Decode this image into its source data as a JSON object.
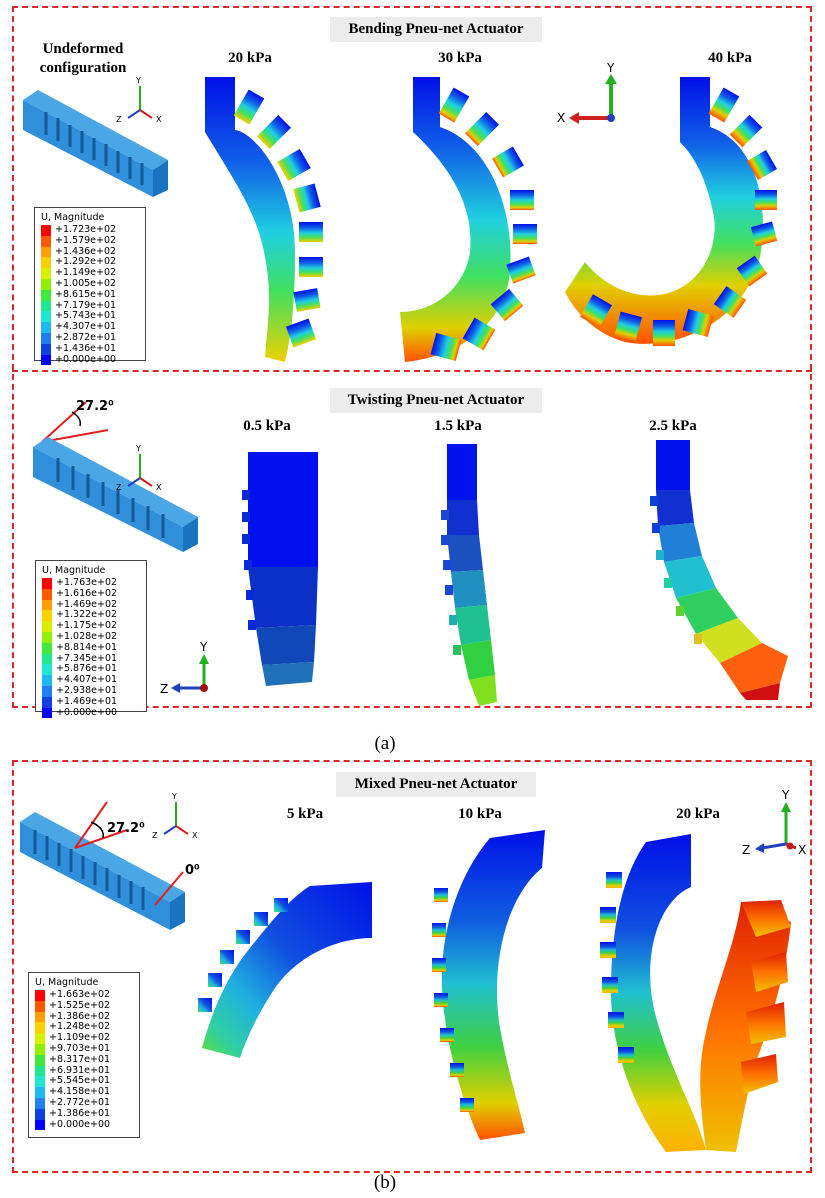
{
  "panel_a": {
    "bending": {
      "title": "Bending Pneu-net Actuator",
      "undeformed_label": "Undeformed configuration",
      "pressures": [
        "20 kPa",
        "30 kPa",
        "40 kPa"
      ],
      "legend": {
        "title": "U, Magnitude",
        "values": [
          "+1.723e+02",
          "+1.579e+02",
          "+1.436e+02",
          "+1.292e+02",
          "+1.149e+02",
          "+1.005e+02",
          "+8.615e+01",
          "+7.179e+01",
          "+5.743e+01",
          "+4.307e+01",
          "+2.872e+01",
          "+1.436e+01",
          "+0.000e+00"
        ]
      }
    },
    "twisting": {
      "title": "Twisting Pneu-net Actuator",
      "angle": "27.2⁰",
      "pressures": [
        "0.5 kPa",
        "1.5 kPa",
        "2.5 kPa"
      ],
      "legend": {
        "title": "U, Magnitude",
        "values": [
          "+1.763e+02",
          "+1.616e+02",
          "+1.469e+02",
          "+1.322e+02",
          "+1.175e+02",
          "+1.028e+02",
          "+8.814e+01",
          "+7.345e+01",
          "+5.876e+01",
          "+4.407e+01",
          "+2.938e+01",
          "+1.469e+01",
          "+0.000e+00"
        ]
      }
    },
    "caption": "(a)"
  },
  "panel_b": {
    "mixed": {
      "title": "Mixed Pneu-net Actuator",
      "angle_a": "27.2⁰",
      "angle_b": "0⁰",
      "pressures": [
        "5 kPa",
        "10 kPa",
        "20 kPa"
      ],
      "legend": {
        "title": "U, Magnitude",
        "values": [
          "+1.663e+02",
          "+1.525e+02",
          "+1.386e+02",
          "+1.248e+02",
          "+1.109e+02",
          "+9.703e+01",
          "+8.317e+01",
          "+6.931e+01",
          "+5.545e+01",
          "+4.158e+01",
          "+2.772e+01",
          "+1.386e+01",
          "+0.000e+00"
        ]
      }
    },
    "caption": "(b)"
  },
  "axes": {
    "x": "X",
    "y": "Y",
    "z": "Z"
  },
  "colors": {
    "frame": "#d82828",
    "contour": [
      "#ff0000",
      "#ff5a00",
      "#ffa000",
      "#ffd000",
      "#d8f000",
      "#90f000",
      "#40e840",
      "#20e890",
      "#20e8d0",
      "#20b8f0",
      "#2080f0",
      "#1040e0",
      "#0000ff"
    ]
  }
}
